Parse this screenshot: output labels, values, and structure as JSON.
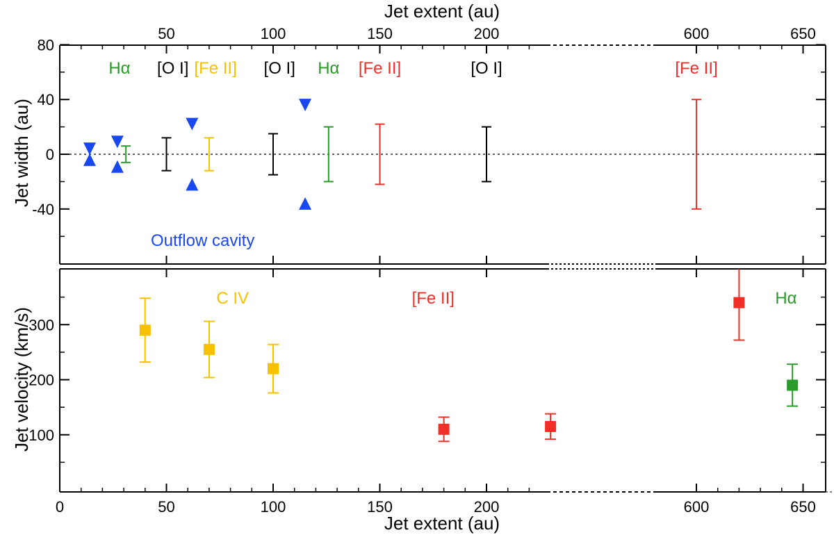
{
  "colors": {
    "black": "#000000",
    "green": "#2a9a2a",
    "gold": "#f7c000",
    "red": "#f03028",
    "blue": "#1a48f0"
  },
  "chart_data": [
    {
      "type": "scatter",
      "panel": "top",
      "xlabel": "Jet extent (au)",
      "ylabel": "Jet width (au)",
      "xticks": [
        "50",
        "100",
        "150",
        "200",
        "600",
        "650"
      ],
      "yticks": [
        "80",
        "40",
        "0",
        "-40"
      ],
      "ylim": [
        -80,
        80
      ],
      "axis_break": "between 230 and 550 au",
      "annotations": [
        {
          "text": "Hα",
          "x": 28,
          "color": "green"
        },
        {
          "text": "[O I]",
          "x": 53,
          "color": "black"
        },
        {
          "text": "[Fe II]",
          "x": 73,
          "color": "gold"
        },
        {
          "text": "[O I]",
          "x": 103,
          "color": "black"
        },
        {
          "text": "Hα",
          "x": 126,
          "color": "green"
        },
        {
          "text": "[Fe II]",
          "x": 150,
          "color": "red"
        },
        {
          "text": "[O I]",
          "x": 200,
          "color": "black"
        },
        {
          "text": "[Fe II]",
          "x": 600,
          "color": "red"
        },
        {
          "text": "Outflow cavity",
          "x": 38,
          "y": -64,
          "color": "blue"
        }
      ],
      "width_bars": [
        {
          "x": 31,
          "low": -6,
          "high": 6,
          "color": "green"
        },
        {
          "x": 50,
          "low": -12,
          "high": 12,
          "color": "black"
        },
        {
          "x": 70,
          "low": -12,
          "high": 12,
          "color": "gold"
        },
        {
          "x": 100,
          "low": -15,
          "high": 15,
          "color": "black"
        },
        {
          "x": 126,
          "low": -20,
          "high": 20,
          "color": "green"
        },
        {
          "x": 150,
          "low": -22,
          "high": 22,
          "color": "red"
        },
        {
          "x": 200,
          "low": -20,
          "high": 20,
          "color": "black"
        },
        {
          "x": 600,
          "low": -40,
          "high": 40,
          "color": "red"
        }
      ],
      "outflow_cavity": [
        {
          "x": 14,
          "half_width": 4
        },
        {
          "x": 27,
          "half_width": 9
        },
        {
          "x": 62,
          "half_width": 22
        },
        {
          "x": 115,
          "half_width": 36
        }
      ]
    },
    {
      "type": "scatter",
      "panel": "bottom",
      "xlabel": "Jet extent (au)",
      "ylabel": "Jet velocity (km/s)",
      "xticks": [
        "0",
        "50",
        "100",
        "150",
        "200",
        "600",
        "650"
      ],
      "yticks": [
        "300",
        "200",
        "100"
      ],
      "ylim": [
        0,
        400
      ],
      "annotations": [
        {
          "text": "C IV",
          "x": 81,
          "color": "gold"
        },
        {
          "text": "[Fe II]",
          "x": 175,
          "color": "red"
        },
        {
          "text": "Hα",
          "x": 642,
          "color": "green"
        }
      ],
      "points": [
        {
          "x": 40,
          "y": 290,
          "low": 232,
          "high": 348,
          "color": "gold"
        },
        {
          "x": 70,
          "y": 255,
          "low": 204,
          "high": 306,
          "color": "gold"
        },
        {
          "x": 100,
          "y": 220,
          "low": 176,
          "high": 264,
          "color": "gold"
        },
        {
          "x": 180,
          "y": 110,
          "low": 88,
          "high": 132,
          "color": "red"
        },
        {
          "x": 230,
          "y": 115,
          "low": 92,
          "high": 138,
          "color": "red",
          "note": "plotted within axis break"
        },
        {
          "x": 620,
          "y": 340,
          "low": 272,
          "high": 408,
          "color": "red"
        },
        {
          "x": 645,
          "y": 190,
          "low": 152,
          "high": 228,
          "color": "green"
        }
      ]
    }
  ]
}
